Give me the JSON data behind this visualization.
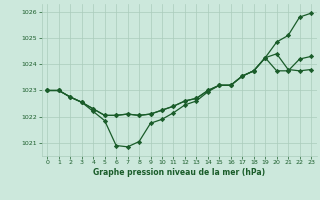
{
  "background_color": "#cce8dc",
  "grid_color": "#aaccbb",
  "line_color": "#1a5c2a",
  "title": "Graphe pression niveau de la mer (hPa)",
  "xlim": [
    -0.5,
    23.5
  ],
  "ylim": [
    1020.5,
    1026.3
  ],
  "yticks": [
    1021,
    1022,
    1023,
    1024,
    1025,
    1026
  ],
  "xticks": [
    0,
    1,
    2,
    3,
    4,
    5,
    6,
    7,
    8,
    9,
    10,
    11,
    12,
    13,
    14,
    15,
    16,
    17,
    18,
    19,
    20,
    21,
    22,
    23
  ],
  "line1_x": [
    0,
    1,
    2,
    3,
    4,
    5,
    6,
    7,
    8,
    9,
    10,
    11,
    12,
    13,
    14,
    15,
    16,
    17,
    18,
    19,
    20,
    21,
    22,
    23
  ],
  "line1_y": [
    1023.0,
    1023.0,
    1022.75,
    1022.55,
    1022.2,
    1021.85,
    1020.9,
    1020.85,
    1021.05,
    1021.75,
    1021.9,
    1022.15,
    1022.45,
    1022.6,
    1022.95,
    1023.2,
    1023.2,
    1023.55,
    1023.75,
    1024.25,
    1024.85,
    1025.1,
    1025.8,
    1025.95
  ],
  "line2_x": [
    0,
    1,
    2,
    3,
    4,
    5,
    6,
    7,
    8,
    9,
    10,
    11,
    12,
    13,
    14,
    15,
    16,
    17,
    18,
    19,
    20,
    21,
    22,
    23
  ],
  "line2_y": [
    1023.0,
    1023.0,
    1022.75,
    1022.55,
    1022.3,
    1022.05,
    1022.05,
    1022.1,
    1022.05,
    1022.1,
    1022.25,
    1022.4,
    1022.6,
    1022.7,
    1023.0,
    1023.2,
    1023.2,
    1023.55,
    1023.75,
    1024.25,
    1023.75,
    1023.75,
    1024.2,
    1024.3
  ],
  "line3_x": [
    0,
    1,
    2,
    3,
    4,
    5,
    6,
    7,
    8,
    9,
    10,
    11,
    12,
    13,
    14,
    15,
    16,
    17,
    18,
    19,
    20,
    21,
    22,
    23
  ],
  "line3_y": [
    1023.0,
    1023.0,
    1022.75,
    1022.55,
    1022.3,
    1022.05,
    1022.05,
    1022.1,
    1022.05,
    1022.1,
    1022.25,
    1022.4,
    1022.6,
    1022.7,
    1023.0,
    1023.2,
    1023.2,
    1023.55,
    1023.75,
    1024.25,
    1024.4,
    1023.8,
    1023.75,
    1023.8
  ]
}
